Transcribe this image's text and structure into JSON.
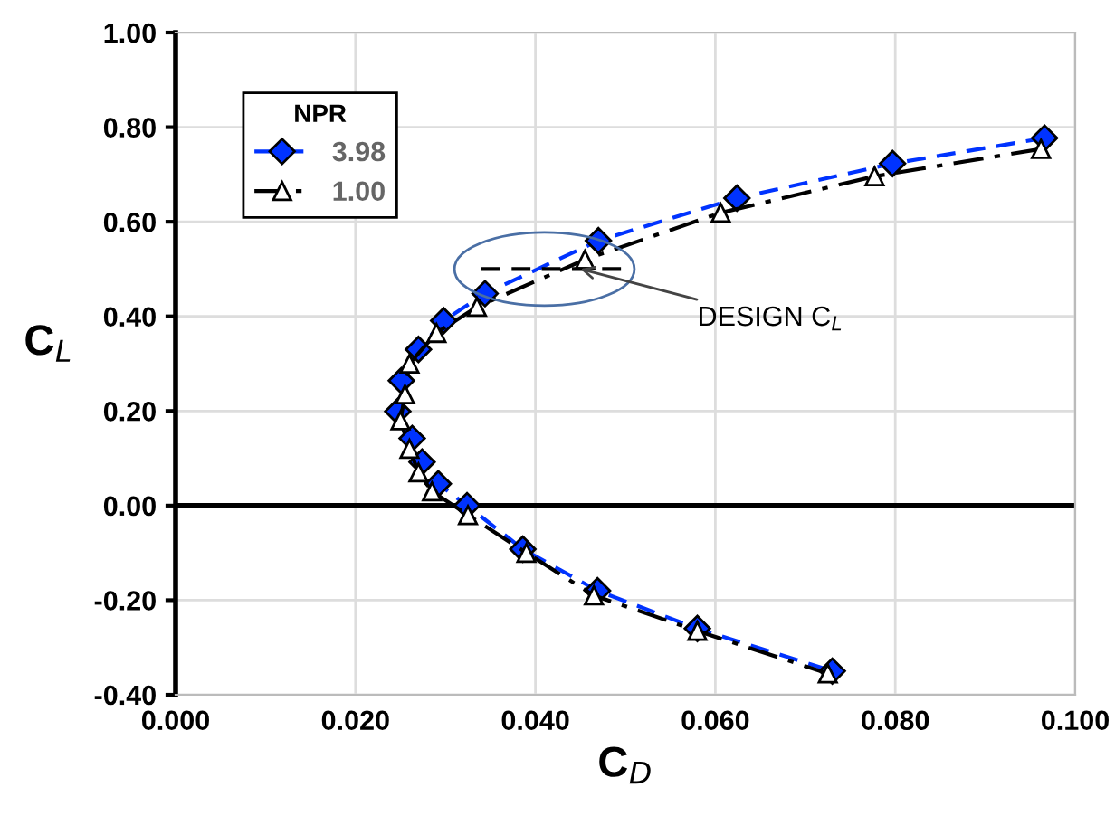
{
  "chart_data": {
    "type": "line",
    "xlabel": "C$_{D}$",
    "ylabel": "C$_{L}$",
    "legend_title": "NPR",
    "legend": "top left",
    "grid": true,
    "xlim": [
      0,
      0.1
    ],
    "xticks": [
      {
        "value": 0,
        "label": "0.000"
      },
      {
        "value": 0.02,
        "label": "0.020"
      },
      {
        "value": 0.04,
        "label": "0.040"
      },
      {
        "value": 0.06,
        "label": "0.060"
      },
      {
        "value": 0.08,
        "label": "0.080"
      },
      {
        "value": 0.1,
        "label": "0.100"
      }
    ],
    "ylim": [
      -0.4,
      1.0
    ],
    "yticks": [
      {
        "value": -0.4,
        "label": "-0.40"
      },
      {
        "value": -0.2,
        "label": "-0.20"
      },
      {
        "value": 0,
        "label": "0.00"
      },
      {
        "value": 0.2,
        "label": "0.20"
      },
      {
        "value": 0.4,
        "label": "0.40"
      },
      {
        "value": 0.6,
        "label": "0.60"
      },
      {
        "value": 0.8,
        "label": "0.80"
      },
      {
        "value": 1.0,
        "label": "1.00"
      }
    ],
    "ref_lines": [
      {
        "axis": "y",
        "value": 0,
        "color": "#000000"
      }
    ],
    "annotations": [
      {
        "text": "DESIGN C$_{L}$",
        "x": 0.045,
        "y": 0.5
      }
    ],
    "series": [
      {
        "name": "3.98",
        "color": "#0033ff",
        "marker": "diamond",
        "line_style": "dashed",
        "x": [
          0.0966,
          0.0797,
          0.0624,
          0.047,
          0.0344,
          0.0298,
          0.027,
          0.0251,
          0.0247,
          0.0263,
          0.0274,
          0.0292,
          0.0324,
          0.0386,
          0.0469,
          0.058,
          0.073
        ],
        "values": [
          0.777,
          0.723,
          0.65,
          0.56,
          0.448,
          0.391,
          0.33,
          0.264,
          0.199,
          0.142,
          0.092,
          0.046,
          0.0,
          -0.092,
          -0.18,
          -0.26,
          -0.35
        ]
      },
      {
        "name": "1.00",
        "color": "#000000",
        "marker": "triangle",
        "line_style": "dashdot",
        "x": [
          0.0962,
          0.0777,
          0.0606,
          0.0455,
          0.0335,
          0.029,
          0.026,
          0.0255,
          0.025,
          0.026,
          0.027,
          0.0285,
          0.0325,
          0.039,
          0.0465,
          0.058,
          0.0725
        ],
        "values": [
          0.754,
          0.696,
          0.619,
          0.52,
          0.42,
          0.365,
          0.3,
          0.235,
          0.18,
          0.12,
          0.07,
          0.03,
          -0.02,
          -0.1,
          -0.19,
          -0.265,
          -0.355
        ]
      },
      {
        "color": "#000000",
        "marker": "none",
        "line_style": "dashed",
        "x": [
          0.034,
          0.05
        ],
        "values": [
          0.5,
          0.5
        ]
      }
    ]
  }
}
